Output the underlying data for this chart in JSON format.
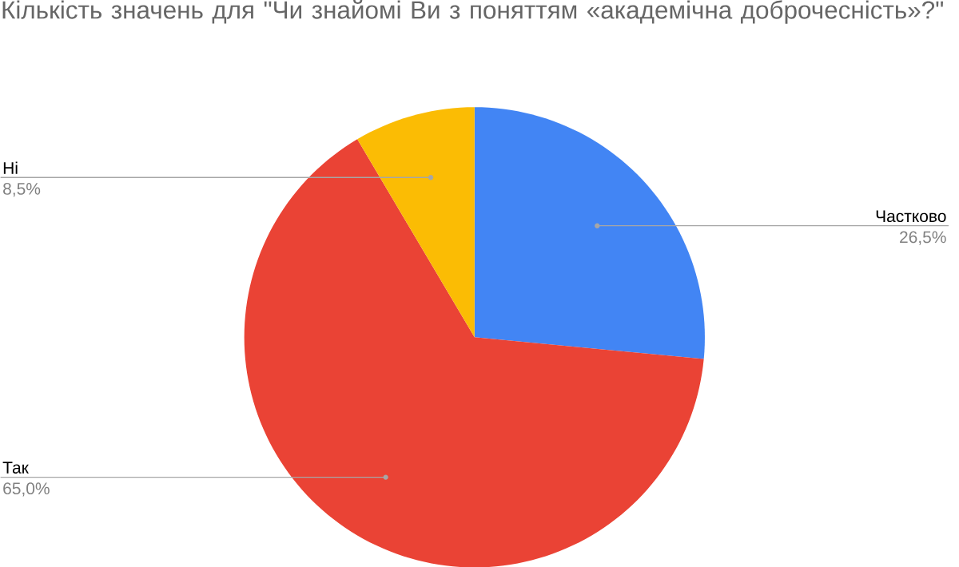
{
  "chart_data": {
    "type": "pie",
    "title": "Кількість значень для \"Чи знайомі Ви з поняттям «академічна доброчесність»?\"",
    "categories": [
      "Частково",
      "Так",
      "Ні"
    ],
    "values": [
      26.5,
      65.0,
      8.5
    ],
    "colors": [
      "#4285f4",
      "#ea4335",
      "#fbbc04"
    ],
    "value_labels": [
      "26,5%",
      "65,0%",
      "8,5%"
    ]
  }
}
